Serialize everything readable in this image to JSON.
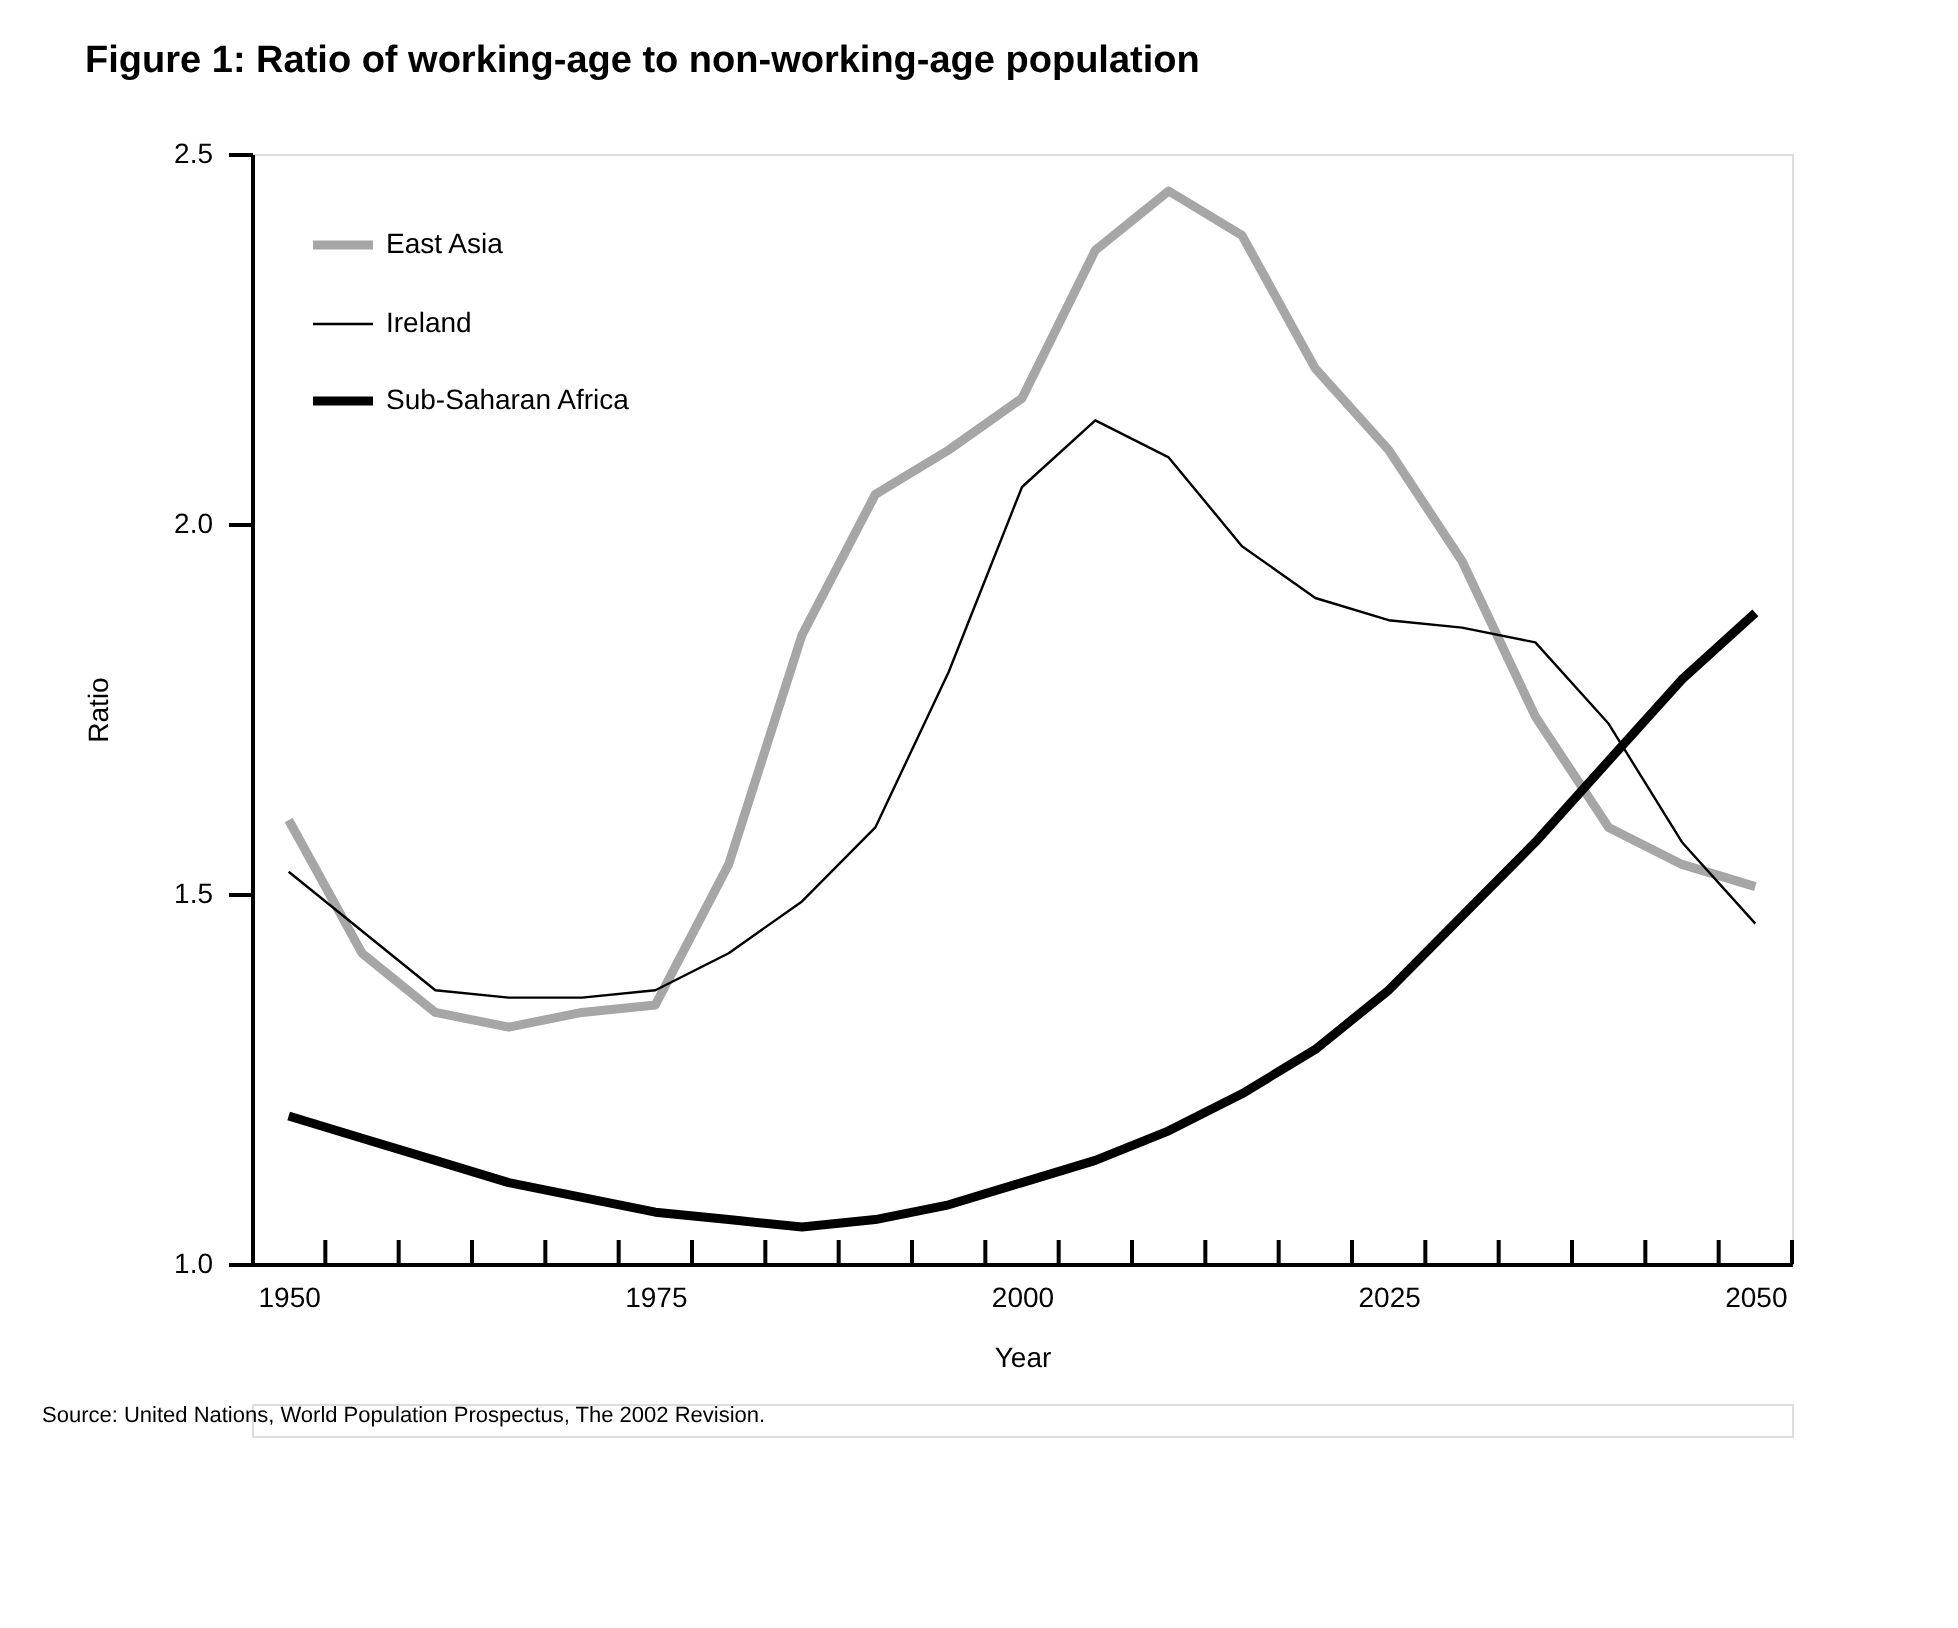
{
  "chart_data": {
    "type": "line",
    "title": "Figure 1: Ratio of working-age to non-working-age population",
    "xlabel": "Year",
    "ylabel": "Ratio",
    "x": [
      1950,
      1955,
      1960,
      1965,
      1970,
      1975,
      1980,
      1985,
      1990,
      1995,
      2000,
      2005,
      2010,
      2015,
      2020,
      2025,
      2030,
      2035,
      2040,
      2045,
      2050
    ],
    "series": [
      {
        "name": "East Asia",
        "color": "#a6a6a6",
        "values": [
          1.6,
          1.42,
          1.34,
          1.32,
          1.34,
          1.35,
          1.54,
          1.85,
          2.04,
          2.1,
          2.17,
          2.37,
          2.45,
          2.39,
          2.21,
          2.1,
          1.95,
          1.74,
          1.59,
          1.54,
          1.51
        ]
      },
      {
        "name": "Ireland",
        "color": "#000000",
        "values": [
          1.53,
          1.45,
          1.37,
          1.36,
          1.36,
          1.37,
          1.42,
          1.49,
          1.59,
          1.8,
          2.05,
          2.14,
          2.09,
          1.97,
          1.9,
          1.87,
          1.86,
          1.84,
          1.73,
          1.57,
          1.46
        ]
      },
      {
        "name": "Sub-Saharan Africa",
        "color": "#000000",
        "values": [
          1.2,
          1.17,
          1.14,
          1.11,
          1.09,
          1.07,
          1.06,
          1.05,
          1.06,
          1.08,
          1.11,
          1.14,
          1.18,
          1.23,
          1.29,
          1.37,
          1.47,
          1.57,
          1.68,
          1.79,
          1.88
        ]
      }
    ],
    "xlim": [
      1947.5,
      2052.5
    ],
    "xticks": [
      1950,
      1975,
      2000,
      2025,
      2050,
      {
        "value": 1952.5,
        "label": null
      },
      {
        "value": 1957.5,
        "label": null
      },
      {
        "value": 1962.5,
        "label": null
      },
      {
        "value": 1967.5,
        "label": null
      },
      {
        "value": 1972.5,
        "label": null
      },
      {
        "value": 1977.5,
        "label": null
      },
      {
        "value": 1982.5,
        "label": null
      },
      {
        "value": 1987.5,
        "label": null
      },
      {
        "value": 1992.5,
        "label": null
      },
      {
        "value": 1997.5,
        "label": null
      },
      {
        "value": 2002.5,
        "label": null
      },
      {
        "value": 2007.5,
        "label": null
      },
      {
        "value": 2012.5,
        "label": null
      },
      {
        "value": 2017.5,
        "label": null
      },
      {
        "value": 2022.5,
        "label": null
      },
      {
        "value": 2027.5,
        "label": null
      },
      {
        "value": 2032.5,
        "label": null
      },
      {
        "value": 2037.5,
        "label": null
      },
      {
        "value": 2042.5,
        "label": null
      },
      {
        "value": 2047.5,
        "label": null
      },
      {
        "value": 2052.5,
        "label": null
      }
    ],
    "ylim": [
      1.0,
      2.5
    ],
    "yticks": [
      {
        "value": 1.0,
        "label": "1.0"
      },
      {
        "value": 1.5,
        "label": "1.5"
      },
      {
        "value": 2.0,
        "label": "2.0"
      },
      {
        "value": 2.5,
        "label": "2.5"
      }
    ],
    "grid": false,
    "legend": "top left",
    "marker": "none",
    "line_style": "solid",
    "annotations": [
      "Source: United Nations, World Population Prospectus, The 2002 Revision."
    ]
  }
}
